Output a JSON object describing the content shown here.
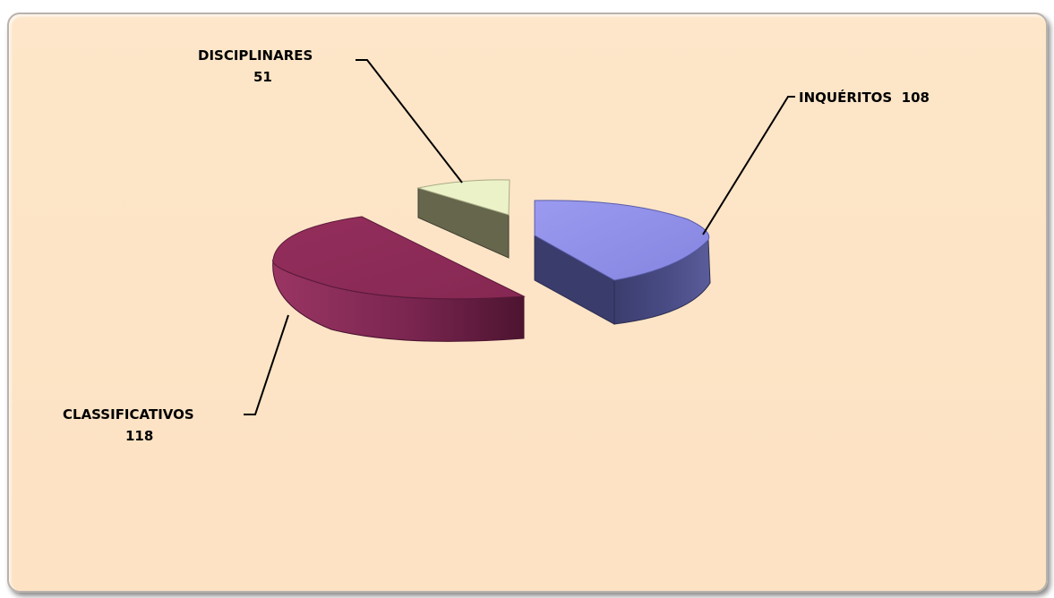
{
  "chart_data": {
    "type": "pie",
    "style": "3d-exploded",
    "title": "",
    "slices": [
      {
        "label": "INQUÉRITOS",
        "value": 108,
        "color": "#8f8fe8",
        "side_color": "#3d3f73"
      },
      {
        "label": "CLASSIFICATIVOS",
        "value": 118,
        "color": "#8e2c58",
        "side_color": "#6a2142"
      },
      {
        "label": "DISCIPLINARES",
        "value": 51,
        "color": "#ecf2c8",
        "side_color": "#66664d"
      }
    ],
    "labels": {
      "inqueritos": {
        "line1": "INQUÉRITOS  108"
      },
      "classificativos": {
        "line1": "CLASSIFICATIVOS",
        "line2": "118"
      },
      "disciplinares": {
        "line1": "DISCIPLINARES",
        "line2": "51"
      }
    },
    "legend": "none",
    "background_color": "#fde3c5"
  }
}
